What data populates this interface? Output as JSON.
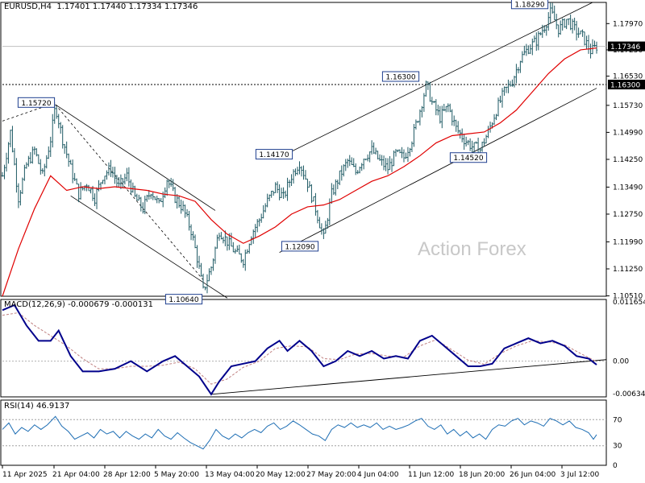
{
  "header": {
    "symbol": "EURUSD,H4",
    "ohlc": "1.17401 1.17440 1.17334 1.17346"
  },
  "watermark": "Action Forex",
  "colors": {
    "price": "#1e5a64",
    "ma": "#e00000",
    "macd_main": "#00008b",
    "macd_signal": "#c08080",
    "rsi": "#1e6eb4",
    "grid_line": "#a0a0a0"
  },
  "chart_data": [
    {
      "type": "line",
      "panel": "price",
      "ylim": [
        1.105,
        1.1855
      ],
      "y_ticks": [
        "1.17970",
        "1.17250",
        "1.16530",
        "1.15730",
        "1.14990",
        "1.14250",
        "1.13490",
        "1.12750",
        "1.11990",
        "1.11250",
        "1.10510"
      ],
      "current_price_label": "1.17346",
      "hline_label": "1.16300",
      "x_ticks": [
        "11 Apr 2025",
        "21 Apr 04:00",
        "28 Apr 12:00",
        "5 May 20:00",
        "13 May 04:00",
        "20 May 12:00",
        "27 May 20:00",
        "4 Jun 04:00",
        "11 Jun 12:00",
        "18 Jun 20:00",
        "26 Jun 04:00",
        "3 Jul 12:00"
      ],
      "annotations": [
        "1.15720",
        "1.10640",
        "1.14170",
        "1.12090",
        "1.16300",
        "1.14520",
        "1.18290"
      ],
      "close_path": [
        [
          0,
          1.138
        ],
        [
          10,
          1.15
        ],
        [
          20,
          1.132
        ],
        [
          30,
          1.141
        ],
        [
          40,
          1.145
        ],
        [
          50,
          1.138
        ],
        [
          60,
          1.148
        ],
        [
          66,
          1.1572
        ],
        [
          75,
          1.148
        ],
        [
          85,
          1.14
        ],
        [
          95,
          1.133
        ],
        [
          105,
          1.136
        ],
        [
          115,
          1.132
        ],
        [
          125,
          1.138
        ],
        [
          135,
          1.14
        ],
        [
          145,
          1.135
        ],
        [
          155,
          1.138
        ],
        [
          165,
          1.132
        ],
        [
          175,
          1.129
        ],
        [
          185,
          1.134
        ],
        [
          195,
          1.13
        ],
        [
          205,
          1.137
        ],
        [
          215,
          1.132
        ],
        [
          225,
          1.129
        ],
        [
          235,
          1.123
        ],
        [
          243,
          1.115
        ],
        [
          250,
          1.1064
        ],
        [
          260,
          1.113
        ],
        [
          270,
          1.123
        ],
        [
          280,
          1.12
        ],
        [
          290,
          1.117
        ],
        [
          300,
          1.115
        ],
        [
          310,
          1.122
        ],
        [
          320,
          1.126
        ],
        [
          330,
          1.131
        ],
        [
          340,
          1.135
        ],
        [
          350,
          1.132
        ],
        [
          360,
          1.138
        ],
        [
          370,
          1.1417
        ],
        [
          380,
          1.136
        ],
        [
          390,
          1.129
        ],
        [
          400,
          1.1209
        ],
        [
          410,
          1.133
        ],
        [
          420,
          1.138
        ],
        [
          430,
          1.142
        ],
        [
          440,
          1.139
        ],
        [
          450,
          1.143
        ],
        [
          460,
          1.145
        ],
        [
          470,
          1.142
        ],
        [
          480,
          1.14
        ],
        [
          490,
          1.144
        ],
        [
          500,
          1.143
        ],
        [
          510,
          1.148
        ],
        [
          520,
          1.156
        ],
        [
          528,
          1.163
        ],
        [
          535,
          1.158
        ],
        [
          545,
          1.154
        ],
        [
          555,
          1.157
        ],
        [
          565,
          1.151
        ],
        [
          575,
          1.148
        ],
        [
          585,
          1.146
        ],
        [
          595,
          1.1452
        ],
        [
          605,
          1.15
        ],
        [
          615,
          1.156
        ],
        [
          625,
          1.161
        ],
        [
          635,
          1.164
        ],
        [
          645,
          1.17
        ],
        [
          655,
          1.173
        ],
        [
          665,
          1.175
        ],
        [
          675,
          1.179
        ],
        [
          683,
          1.1829
        ],
        [
          693,
          1.178
        ],
        [
          703,
          1.181
        ],
        [
          713,
          1.178
        ],
        [
          723,
          1.176
        ],
        [
          733,
          1.172
        ],
        [
          740,
          1.1735
        ]
      ],
      "ma_path": [
        [
          0,
          1.105
        ],
        [
          20,
          1.118
        ],
        [
          40,
          1.129
        ],
        [
          60,
          1.138
        ],
        [
          80,
          1.134
        ],
        [
          100,
          1.135
        ],
        [
          120,
          1.1345
        ],
        [
          140,
          1.135
        ],
        [
          160,
          1.1345
        ],
        [
          180,
          1.134
        ],
        [
          200,
          1.133
        ],
        [
          220,
          1.1325
        ],
        [
          240,
          1.131
        ],
        [
          260,
          1.126
        ],
        [
          280,
          1.122
        ],
        [
          300,
          1.1195
        ],
        [
          320,
          1.1215
        ],
        [
          340,
          1.124
        ],
        [
          360,
          1.1275
        ],
        [
          380,
          1.1295
        ],
        [
          400,
          1.13
        ],
        [
          420,
          1.1315
        ],
        [
          440,
          1.134
        ],
        [
          460,
          1.1365
        ],
        [
          480,
          1.138
        ],
        [
          500,
          1.1405
        ],
        [
          520,
          1.1435
        ],
        [
          540,
          1.147
        ],
        [
          560,
          1.149
        ],
        [
          580,
          1.1495
        ],
        [
          600,
          1.15
        ],
        [
          620,
          1.1525
        ],
        [
          640,
          1.156
        ],
        [
          660,
          1.161
        ],
        [
          680,
          1.166
        ],
        [
          700,
          1.17
        ],
        [
          720,
          1.1725
        ],
        [
          740,
          1.173
        ]
      ]
    },
    {
      "type": "line",
      "panel": "macd",
      "label": "MACD(12,26,9) -0.000679 -0.000131",
      "ylim": [
        -0.007,
        0.0121
      ],
      "y_ticks": [
        "0.011654",
        "0.00",
        "-0.006345"
      ],
      "main_path": [
        [
          0,
          0.01
        ],
        [
          15,
          0.011
        ],
        [
          30,
          0.007
        ],
        [
          45,
          0.004
        ],
        [
          60,
          0.004
        ],
        [
          70,
          0.006
        ],
        [
          85,
          0.001
        ],
        [
          100,
          -0.002
        ],
        [
          120,
          -0.002
        ],
        [
          140,
          -0.0015
        ],
        [
          160,
          0.0
        ],
        [
          180,
          -0.002
        ],
        [
          200,
          0.0
        ],
        [
          215,
          0.001
        ],
        [
          230,
          -0.001
        ],
        [
          245,
          -0.003
        ],
        [
          260,
          -0.0065
        ],
        [
          270,
          -0.004
        ],
        [
          285,
          -0.001
        ],
        [
          300,
          -0.0005
        ],
        [
          315,
          0.0
        ],
        [
          330,
          0.0025
        ],
        [
          345,
          0.004
        ],
        [
          355,
          0.002
        ],
        [
          370,
          0.004
        ],
        [
          385,
          0.002
        ],
        [
          400,
          -0.001
        ],
        [
          415,
          0.0
        ],
        [
          430,
          0.002
        ],
        [
          445,
          0.001
        ],
        [
          460,
          0.002
        ],
        [
          475,
          0.0005
        ],
        [
          490,
          0.001
        ],
        [
          505,
          0.0005
        ],
        [
          520,
          0.004
        ],
        [
          535,
          0.005
        ],
        [
          550,
          0.003
        ],
        [
          565,
          0.001
        ],
        [
          580,
          -0.001
        ],
        [
          595,
          -0.001
        ],
        [
          610,
          -0.0005
        ],
        [
          625,
          0.0025
        ],
        [
          640,
          0.0035
        ],
        [
          655,
          0.0045
        ],
        [
          670,
          0.0035
        ],
        [
          685,
          0.004
        ],
        [
          700,
          0.003
        ],
        [
          715,
          0.001
        ],
        [
          730,
          0.0005
        ],
        [
          740,
          -0.0007
        ]
      ],
      "signal_path": [
        [
          0,
          0.009
        ],
        [
          20,
          0.0095
        ],
        [
          40,
          0.007
        ],
        [
          60,
          0.005
        ],
        [
          80,
          0.003
        ],
        [
          100,
          0.0005
        ],
        [
          120,
          -0.0015
        ],
        [
          140,
          -0.0015
        ],
        [
          160,
          -0.001
        ],
        [
          180,
          -0.001
        ],
        [
          200,
          -0.0008
        ],
        [
          220,
          -0.0002
        ],
        [
          240,
          -0.0015
        ],
        [
          260,
          -0.0045
        ],
        [
          280,
          -0.0035
        ],
        [
          300,
          -0.0012
        ],
        [
          320,
          0.0
        ],
        [
          340,
          0.0025
        ],
        [
          360,
          0.003
        ],
        [
          380,
          0.0028
        ],
        [
          400,
          0.0005
        ],
        [
          420,
          0.0003
        ],
        [
          440,
          0.0014
        ],
        [
          460,
          0.0015
        ],
        [
          480,
          0.001
        ],
        [
          500,
          0.0008
        ],
        [
          520,
          0.003
        ],
        [
          540,
          0.0042
        ],
        [
          560,
          0.0022
        ],
        [
          580,
          0.0002
        ],
        [
          600,
          -0.0006
        ],
        [
          620,
          0.0015
        ],
        [
          640,
          0.003
        ],
        [
          660,
          0.004
        ],
        [
          680,
          0.0038
        ],
        [
          700,
          0.0032
        ],
        [
          720,
          0.0015
        ],
        [
          740,
          -0.0001
        ]
      ]
    },
    {
      "type": "line",
      "panel": "rsi",
      "label": "RSI(14) 46.9137",
      "ylim": [
        0,
        100
      ],
      "y_ticks": [
        "70",
        "30",
        "0"
      ],
      "levels": [
        70,
        30
      ],
      "path": [
        [
          0,
          55
        ],
        [
          8,
          65
        ],
        [
          16,
          48
        ],
        [
          24,
          58
        ],
        [
          32,
          52
        ],
        [
          40,
          62
        ],
        [
          48,
          55
        ],
        [
          56,
          62
        ],
        [
          66,
          75
        ],
        [
          74,
          60
        ],
        [
          82,
          52
        ],
        [
          90,
          40
        ],
        [
          98,
          45
        ],
        [
          106,
          50
        ],
        [
          114,
          42
        ],
        [
          122,
          55
        ],
        [
          130,
          48
        ],
        [
          138,
          52
        ],
        [
          146,
          42
        ],
        [
          154,
          52
        ],
        [
          162,
          45
        ],
        [
          170,
          40
        ],
        [
          178,
          48
        ],
        [
          186,
          42
        ],
        [
          194,
          55
        ],
        [
          202,
          45
        ],
        [
          210,
          40
        ],
        [
          218,
          50
        ],
        [
          226,
          42
        ],
        [
          234,
          35
        ],
        [
          242,
          30
        ],
        [
          250,
          25
        ],
        [
          258,
          38
        ],
        [
          266,
          55
        ],
        [
          274,
          45
        ],
        [
          282,
          40
        ],
        [
          290,
          48
        ],
        [
          298,
          42
        ],
        [
          306,
          50
        ],
        [
          314,
          55
        ],
        [
          322,
          50
        ],
        [
          330,
          60
        ],
        [
          338,
          65
        ],
        [
          346,
          55
        ],
        [
          354,
          60
        ],
        [
          362,
          68
        ],
        [
          370,
          62
        ],
        [
          378,
          55
        ],
        [
          386,
          48
        ],
        [
          394,
          45
        ],
        [
          402,
          38
        ],
        [
          410,
          55
        ],
        [
          418,
          62
        ],
        [
          426,
          58
        ],
        [
          434,
          65
        ],
        [
          442,
          58
        ],
        [
          450,
          62
        ],
        [
          458,
          58
        ],
        [
          466,
          65
        ],
        [
          474,
          55
        ],
        [
          482,
          60
        ],
        [
          490,
          55
        ],
        [
          498,
          58
        ],
        [
          506,
          62
        ],
        [
          514,
          68
        ],
        [
          522,
          72
        ],
        [
          530,
          60
        ],
        [
          538,
          55
        ],
        [
          546,
          62
        ],
        [
          554,
          48
        ],
        [
          562,
          55
        ],
        [
          570,
          45
        ],
        [
          578,
          52
        ],
        [
          586,
          42
        ],
        [
          594,
          48
        ],
        [
          602,
          40
        ],
        [
          610,
          55
        ],
        [
          618,
          62
        ],
        [
          626,
          60
        ],
        [
          634,
          68
        ],
        [
          642,
          72
        ],
        [
          650,
          62
        ],
        [
          658,
          68
        ],
        [
          666,
          65
        ],
        [
          674,
          60
        ],
        [
          682,
          72
        ],
        [
          690,
          68
        ],
        [
          698,
          62
        ],
        [
          706,
          68
        ],
        [
          714,
          58
        ],
        [
          722,
          55
        ],
        [
          730,
          50
        ],
        [
          736,
          40
        ],
        [
          740,
          47
        ]
      ]
    }
  ]
}
